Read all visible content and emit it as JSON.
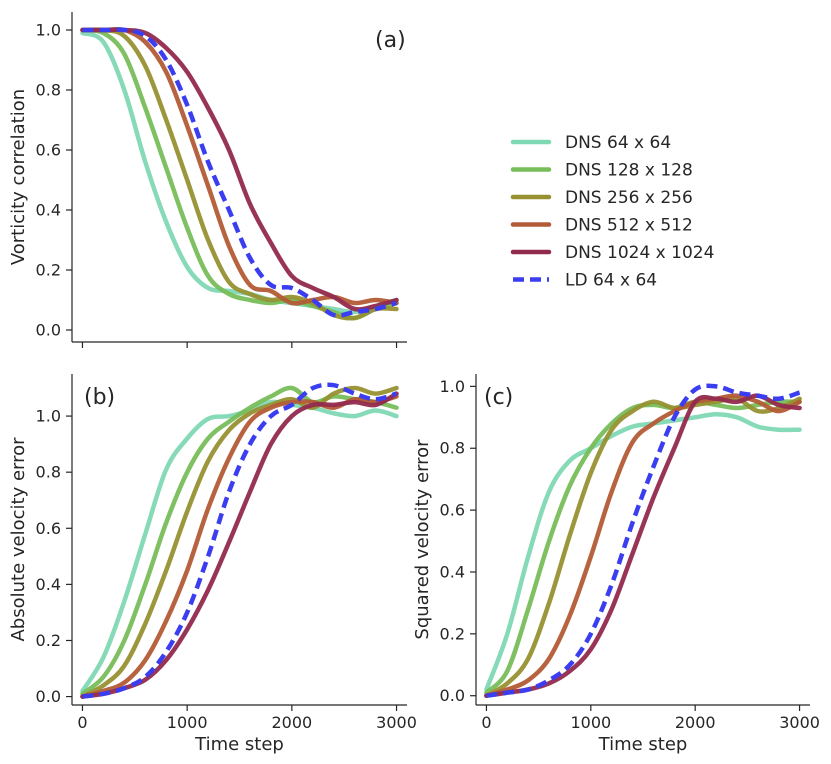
{
  "chart_data": [
    {
      "type": "line",
      "panel_label": "(a)",
      "ylabel": "Vorticity correlation",
      "xlabel": "",
      "xlim": [
        -100,
        3100
      ],
      "ylim": [
        -0.04,
        1.06
      ],
      "yticks": [
        0.0,
        0.2,
        0.4,
        0.6,
        0.8,
        1.0
      ],
      "ytick_labels": [
        "0.0",
        "0.2",
        "0.4",
        "0.6",
        "0.8",
        "1.0"
      ],
      "xticks": [
        0,
        1000,
        2000,
        3000
      ],
      "xtick_labels": [],
      "x": [
        0,
        200,
        400,
        600,
        800,
        1000,
        1200,
        1400,
        1600,
        1800,
        2000,
        2200,
        2400,
        2600,
        2800,
        3000
      ],
      "series": [
        {
          "name": "DNS 64 x 64",
          "values": [
            0.99,
            0.96,
            0.8,
            0.56,
            0.36,
            0.21,
            0.14,
            0.13,
            0.12,
            0.1,
            0.09,
            0.08,
            0.07,
            0.06,
            0.08,
            0.1
          ]
        },
        {
          "name": "DNS 128 x 128",
          "values": [
            1.0,
            0.99,
            0.92,
            0.74,
            0.54,
            0.34,
            0.18,
            0.12,
            0.1,
            0.09,
            0.1,
            0.08,
            0.06,
            0.04,
            0.07,
            0.09
          ]
        },
        {
          "name": "DNS 256 x 256",
          "values": [
            1.0,
            1.0,
            0.98,
            0.88,
            0.7,
            0.5,
            0.3,
            0.16,
            0.12,
            0.1,
            0.11,
            0.09,
            0.05,
            0.04,
            0.07,
            0.07
          ]
        },
        {
          "name": "DNS 512 x 512",
          "values": [
            1.0,
            1.0,
            1.0,
            0.96,
            0.86,
            0.68,
            0.48,
            0.28,
            0.15,
            0.13,
            0.09,
            0.1,
            0.11,
            0.09,
            0.1,
            0.09
          ]
        },
        {
          "name": "DNS 1024 x 1024",
          "values": [
            1.0,
            1.0,
            1.0,
            0.99,
            0.94,
            0.86,
            0.74,
            0.6,
            0.42,
            0.29,
            0.18,
            0.14,
            0.11,
            0.07,
            0.08,
            0.1
          ]
        },
        {
          "name": "LD 64 x 64",
          "values": [
            1.0,
            1.0,
            1.0,
            0.98,
            0.9,
            0.75,
            0.56,
            0.4,
            0.24,
            0.15,
            0.14,
            0.1,
            0.05,
            0.06,
            0.07,
            0.09
          ]
        }
      ]
    },
    {
      "type": "line",
      "panel_label": "(b)",
      "ylabel": "Absolute velocity error",
      "xlabel": "Time step",
      "xlim": [
        -100,
        3100
      ],
      "ylim": [
        -0.03,
        1.15
      ],
      "yticks": [
        0.0,
        0.2,
        0.4,
        0.6,
        0.8,
        1.0
      ],
      "ytick_labels": [
        "0.0",
        "0.2",
        "0.4",
        "0.6",
        "0.8",
        "1.0"
      ],
      "xticks": [
        0,
        1000,
        2000,
        3000
      ],
      "xtick_labels": [
        "0",
        "1000",
        "2000",
        "3000"
      ],
      "x": [
        0,
        200,
        400,
        600,
        800,
        1000,
        1200,
        1400,
        1600,
        1800,
        2000,
        2200,
        2400,
        2600,
        2800,
        3000
      ],
      "series": [
        {
          "name": "DNS 64 x 64",
          "values": [
            0.02,
            0.14,
            0.34,
            0.58,
            0.81,
            0.92,
            0.99,
            1.0,
            1.02,
            1.05,
            1.04,
            1.03,
            1.01,
            1.0,
            1.02,
            1.0
          ]
        },
        {
          "name": "DNS 128 x 128",
          "values": [
            0.01,
            0.07,
            0.2,
            0.4,
            0.62,
            0.8,
            0.92,
            0.98,
            1.03,
            1.07,
            1.1,
            1.05,
            1.07,
            1.06,
            1.05,
            1.03
          ]
        },
        {
          "name": "DNS 256 x 256",
          "values": [
            0.0,
            0.04,
            0.11,
            0.26,
            0.45,
            0.66,
            0.84,
            0.95,
            1.01,
            1.04,
            1.06,
            1.03,
            1.08,
            1.1,
            1.08,
            1.1
          ]
        },
        {
          "name": "DNS 512 x 512",
          "values": [
            0.0,
            0.02,
            0.05,
            0.13,
            0.27,
            0.45,
            0.67,
            0.85,
            0.98,
            1.03,
            1.05,
            1.05,
            1.03,
            1.06,
            1.05,
            1.07
          ]
        },
        {
          "name": "DNS 1024 x 1024",
          "values": [
            0.0,
            0.01,
            0.03,
            0.06,
            0.13,
            0.24,
            0.38,
            0.55,
            0.73,
            0.9,
            1.0,
            1.04,
            1.04,
            1.05,
            1.04,
            1.08
          ]
        },
        {
          "name": "LD 64 x 64",
          "values": [
            0.0,
            0.01,
            0.03,
            0.07,
            0.16,
            0.3,
            0.5,
            0.73,
            0.9,
            1.0,
            1.04,
            1.1,
            1.11,
            1.08,
            1.06,
            1.08
          ]
        }
      ]
    },
    {
      "type": "line",
      "panel_label": "(c)",
      "ylabel": "Squared velocity error",
      "xlabel": "Time step",
      "xlim": [
        -100,
        3100
      ],
      "ylim": [
        -0.03,
        1.04
      ],
      "yticks": [
        0.0,
        0.2,
        0.4,
        0.6,
        0.8,
        1.0
      ],
      "ytick_labels": [
        "0.0",
        "0.2",
        "0.4",
        "0.6",
        "0.8",
        "1.0"
      ],
      "xticks": [
        0,
        1000,
        2000,
        3000
      ],
      "xtick_labels": [
        "0",
        "1000",
        "2000",
        "3000"
      ],
      "x": [
        0,
        200,
        400,
        600,
        800,
        1000,
        1200,
        1400,
        1600,
        1800,
        2000,
        2200,
        2400,
        2600,
        2800,
        3000
      ],
      "series": [
        {
          "name": "DNS 64 x 64",
          "values": [
            0.02,
            0.2,
            0.45,
            0.66,
            0.76,
            0.8,
            0.84,
            0.87,
            0.88,
            0.89,
            0.9,
            0.91,
            0.9,
            0.87,
            0.86,
            0.86
          ]
        },
        {
          "name": "DNS 128 x 128",
          "values": [
            0.01,
            0.08,
            0.28,
            0.5,
            0.68,
            0.8,
            0.88,
            0.93,
            0.94,
            0.93,
            0.95,
            0.94,
            0.93,
            0.94,
            0.95,
            0.95
          ]
        },
        {
          "name": "DNS 256 x 256",
          "values": [
            0.0,
            0.04,
            0.12,
            0.3,
            0.52,
            0.72,
            0.86,
            0.92,
            0.95,
            0.93,
            0.94,
            0.95,
            0.96,
            0.92,
            0.93,
            0.96
          ]
        },
        {
          "name": "DNS 512 x 512",
          "values": [
            0.0,
            0.02,
            0.05,
            0.12,
            0.26,
            0.45,
            0.66,
            0.82,
            0.88,
            0.92,
            0.95,
            0.96,
            0.97,
            0.95,
            0.92,
            0.95
          ]
        },
        {
          "name": "DNS 1024 x 1024",
          "values": [
            0.0,
            0.01,
            0.02,
            0.04,
            0.08,
            0.15,
            0.28,
            0.46,
            0.64,
            0.8,
            0.95,
            0.96,
            0.95,
            0.97,
            0.94,
            0.93
          ]
        },
        {
          "name": "LD 64 x 64",
          "values": [
            0.0,
            0.01,
            0.02,
            0.05,
            0.1,
            0.2,
            0.36,
            0.56,
            0.74,
            0.9,
            0.99,
            1.0,
            0.98,
            0.97,
            0.96,
            0.98
          ]
        }
      ]
    }
  ],
  "legend": {
    "placement": "upper-right",
    "entries": [
      {
        "label": "DNS 64 x 64",
        "color": "#7fd8b4",
        "dashed": false
      },
      {
        "label": "DNS 128 x 128",
        "color": "#77bd5a",
        "dashed": false
      },
      {
        "label": "DNS 256 x 256",
        "color": "#979131",
        "dashed": false
      },
      {
        "label": "DNS 512 x 512",
        "color": "#b35b36",
        "dashed": false
      },
      {
        "label": "DNS 1024 x 1024",
        "color": "#922a4e",
        "dashed": false
      },
      {
        "label": "LD 64 x 64",
        "color": "#3a3ef0",
        "dashed": true
      }
    ]
  }
}
